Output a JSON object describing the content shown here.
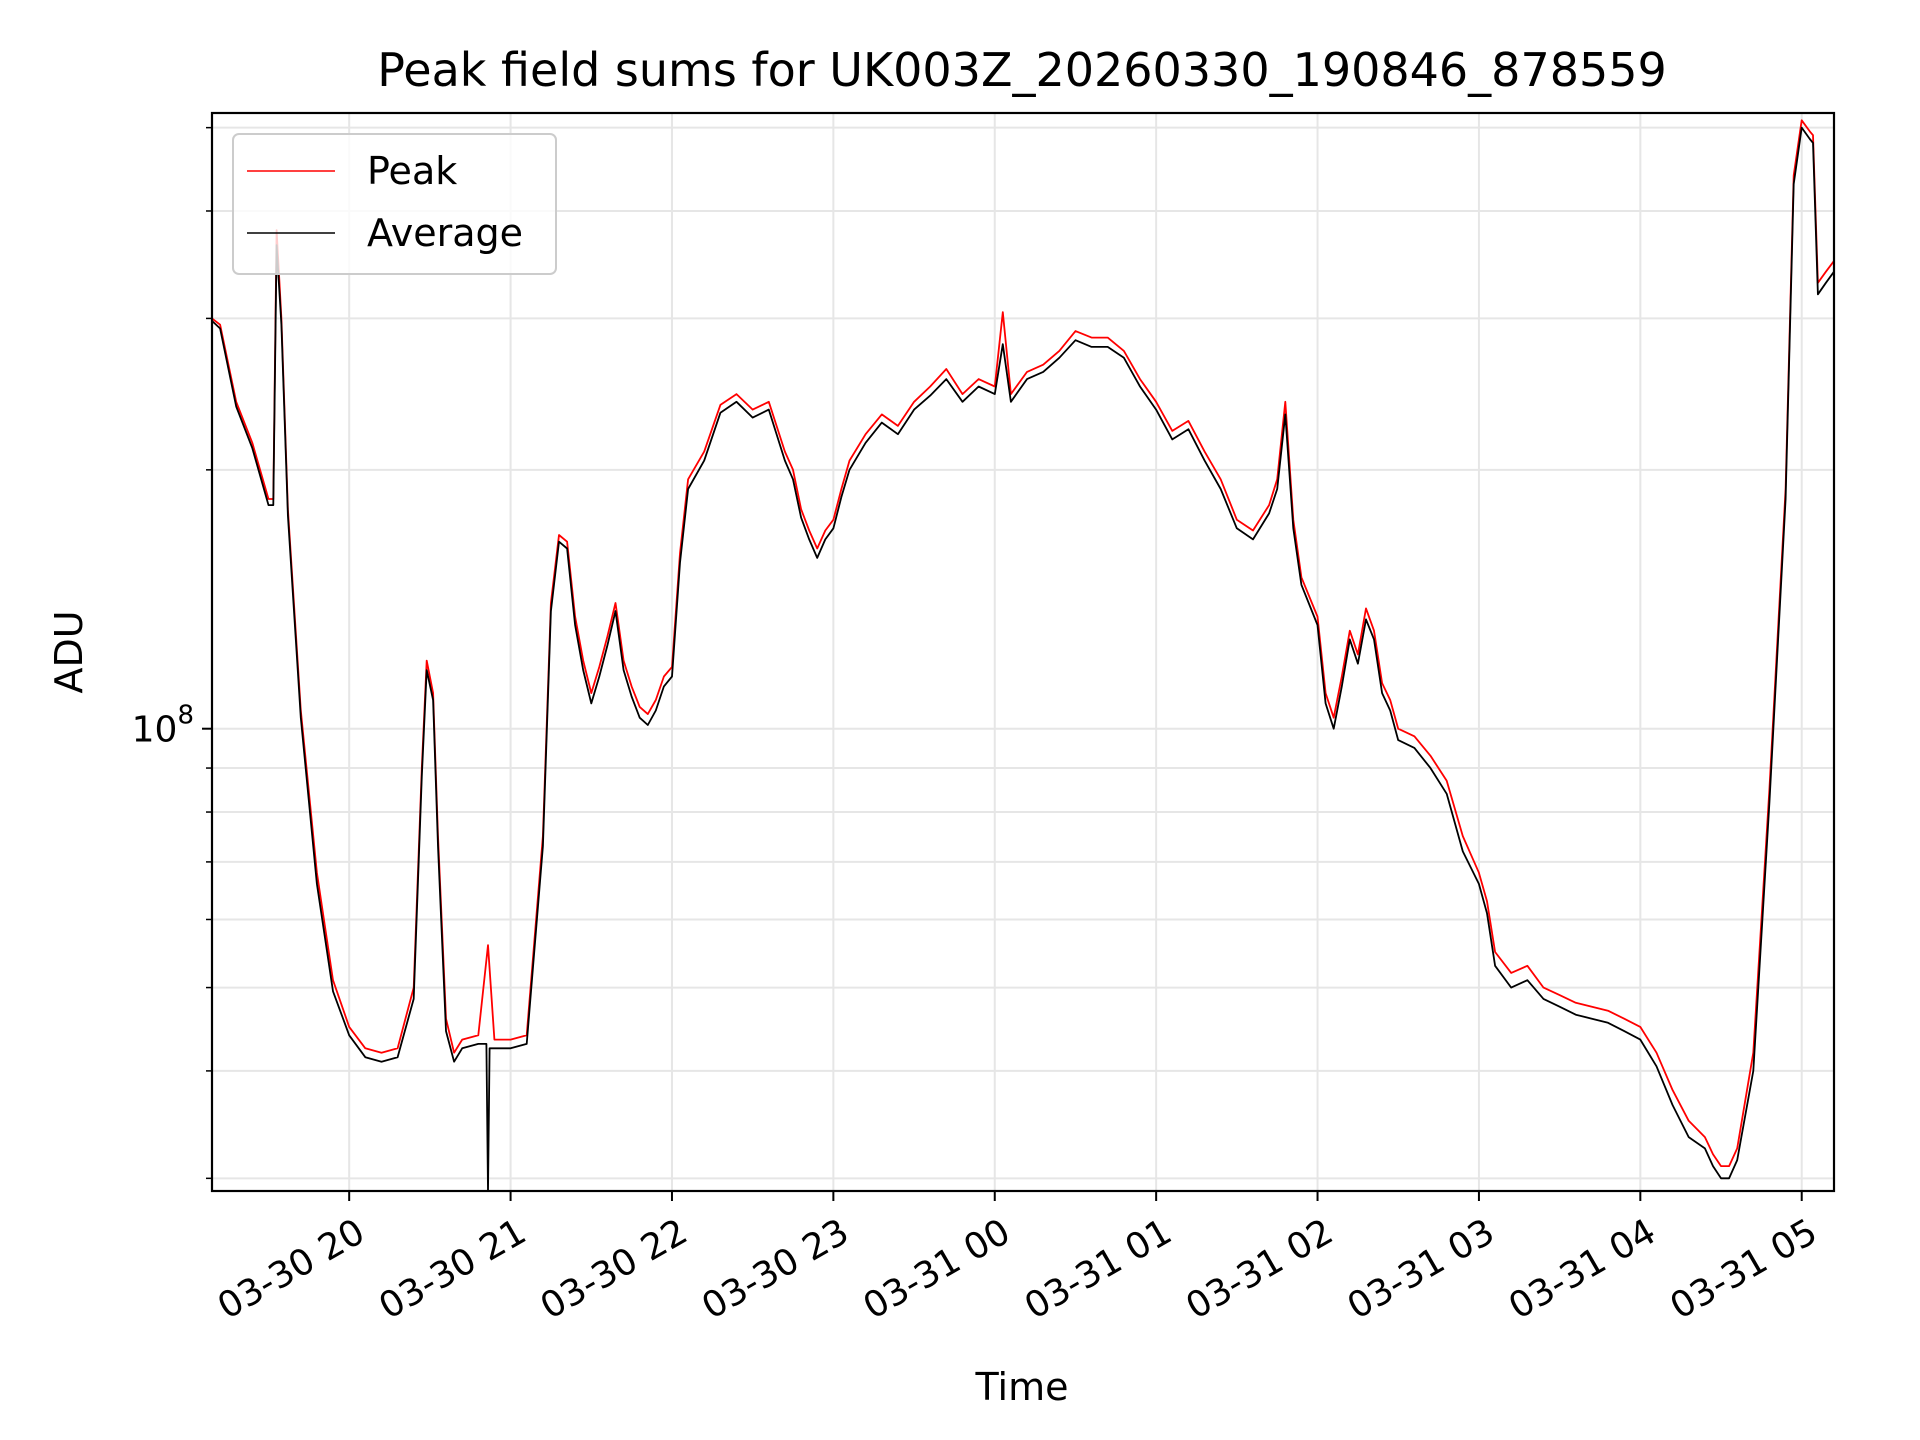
{
  "chart_data": {
    "type": "line",
    "title": "Peak field sums for UK003Z_20260330_190846_878559",
    "xlabel": "Time",
    "ylabel": "ADU",
    "yscale": "log",
    "ylim": [
      29000000,
      520000000
    ],
    "xlim_hours": [
      19.15,
      29.2
    ],
    "x_ticks": [
      {
        "label": "03-30 20",
        "hours": 20
      },
      {
        "label": "03-30 21",
        "hours": 21
      },
      {
        "label": "03-30 22",
        "hours": 22
      },
      {
        "label": "03-30 23",
        "hours": 23
      },
      {
        "label": "03-31 00",
        "hours": 24
      },
      {
        "label": "03-31 01",
        "hours": 25
      },
      {
        "label": "03-31 02",
        "hours": 26
      },
      {
        "label": "03-31 03",
        "hours": 27
      },
      {
        "label": "03-31 04",
        "hours": 28
      },
      {
        "label": "03-31 05",
        "hours": 29
      }
    ],
    "y_major_ticks": [
      {
        "value": 100000000,
        "base": "10",
        "exp": "8"
      }
    ],
    "y_minor_ticks": [
      30000000,
      40000000,
      50000000,
      60000000,
      70000000,
      80000000,
      90000000,
      200000000,
      300000000,
      400000000,
      500000000
    ],
    "grid": true,
    "legend_position": "top-left",
    "series": [
      {
        "name": "Peak",
        "color": "#ff0000",
        "x": [
          19.15,
          19.2,
          19.3,
          19.4,
          19.5,
          19.53,
          19.55,
          19.58,
          19.62,
          19.7,
          19.8,
          19.9,
          20.0,
          20.1,
          20.2,
          20.3,
          20.4,
          20.45,
          20.48,
          20.52,
          20.55,
          20.6,
          20.65,
          20.7,
          20.8,
          20.86,
          20.9,
          21.0,
          21.1,
          21.2,
          21.25,
          21.3,
          21.35,
          21.4,
          21.45,
          21.5,
          21.55,
          21.6,
          21.65,
          21.7,
          21.75,
          21.8,
          21.85,
          21.9,
          21.95,
          22.0,
          22.05,
          22.1,
          22.2,
          22.3,
          22.4,
          22.5,
          22.6,
          22.7,
          22.75,
          22.8,
          22.85,
          22.9,
          22.95,
          23.0,
          23.05,
          23.1,
          23.2,
          23.3,
          23.4,
          23.5,
          23.6,
          23.7,
          23.8,
          23.9,
          24.0,
          24.05,
          24.1,
          24.2,
          24.3,
          24.4,
          24.5,
          24.6,
          24.7,
          24.8,
          24.9,
          25.0,
          25.1,
          25.2,
          25.3,
          25.4,
          25.5,
          25.6,
          25.7,
          25.75,
          25.8,
          25.85,
          25.9,
          26.0,
          26.05,
          26.1,
          26.15,
          26.2,
          26.25,
          26.3,
          26.35,
          26.4,
          26.45,
          26.5,
          26.6,
          26.7,
          26.8,
          26.9,
          27.0,
          27.05,
          27.1,
          27.2,
          27.3,
          27.4,
          27.5,
          27.6,
          27.7,
          27.8,
          27.9,
          28.0,
          28.1,
          28.2,
          28.3,
          28.4,
          28.45,
          28.5,
          28.55,
          28.6,
          28.7,
          28.8,
          28.9,
          28.95,
          29.0,
          29.05,
          29.07,
          29.1,
          29.15,
          29.2
        ],
        "y": [
          300000000,
          295000000,
          240000000,
          215000000,
          185000000,
          185000000,
          380000000,
          300000000,
          180000000,
          105000000,
          68000000,
          51000000,
          45000000,
          42500000,
          42000000,
          42500000,
          50000000,
          90000000,
          120000000,
          110000000,
          75000000,
          46000000,
          42000000,
          43500000,
          44000000,
          56000000,
          43500000,
          43500000,
          44000000,
          75000000,
          140000000,
          168000000,
          165000000,
          135000000,
          120000000,
          110000000,
          118000000,
          128000000,
          140000000,
          120000000,
          112000000,
          106000000,
          104000000,
          108000000,
          115000000,
          118000000,
          160000000,
          195000000,
          210000000,
          238000000,
          245000000,
          235000000,
          240000000,
          210000000,
          200000000,
          180000000,
          170000000,
          162000000,
          170000000,
          175000000,
          190000000,
          205000000,
          220000000,
          232000000,
          225000000,
          240000000,
          250000000,
          262000000,
          245000000,
          255000000,
          250000000,
          305000000,
          245000000,
          260000000,
          265000000,
          275000000,
          290000000,
          285000000,
          285000000,
          275000000,
          255000000,
          240000000,
          222000000,
          228000000,
          210000000,
          195000000,
          175000000,
          170000000,
          182000000,
          195000000,
          240000000,
          175000000,
          150000000,
          135000000,
          110000000,
          103000000,
          115000000,
          130000000,
          122000000,
          138000000,
          130000000,
          113000000,
          108000000,
          100000000,
          98000000,
          93000000,
          87000000,
          75000000,
          68000000,
          63000000,
          55000000,
          52000000,
          53000000,
          50000000,
          49000000,
          48000000,
          47500000,
          47000000,
          46000000,
          45000000,
          42000000,
          38000000,
          35000000,
          33500000,
          32000000,
          31000000,
          31000000,
          32500000,
          42000000,
          85000000,
          190000000,
          440000000,
          510000000,
          495000000,
          490000000,
          330000000,
          340000000,
          350000000
        ]
      },
      {
        "name": "Average",
        "color": "#000000",
        "x": [
          19.15,
          19.2,
          19.3,
          19.4,
          19.5,
          19.53,
          19.55,
          19.58,
          19.62,
          19.7,
          19.8,
          19.9,
          20.0,
          20.1,
          20.2,
          20.3,
          20.4,
          20.45,
          20.48,
          20.52,
          20.55,
          20.6,
          20.65,
          20.7,
          20.8,
          20.85,
          20.86,
          20.87,
          20.9,
          21.0,
          21.1,
          21.2,
          21.25,
          21.3,
          21.35,
          21.4,
          21.45,
          21.5,
          21.55,
          21.6,
          21.65,
          21.7,
          21.75,
          21.8,
          21.85,
          21.9,
          21.95,
          22.0,
          22.05,
          22.1,
          22.2,
          22.3,
          22.4,
          22.5,
          22.6,
          22.7,
          22.75,
          22.8,
          22.85,
          22.9,
          22.95,
          23.0,
          23.05,
          23.1,
          23.2,
          23.3,
          23.4,
          23.5,
          23.6,
          23.7,
          23.8,
          23.9,
          24.0,
          24.05,
          24.1,
          24.2,
          24.3,
          24.4,
          24.5,
          24.6,
          24.7,
          24.8,
          24.9,
          25.0,
          25.1,
          25.2,
          25.3,
          25.4,
          25.5,
          25.6,
          25.7,
          25.75,
          25.8,
          25.85,
          25.9,
          26.0,
          26.05,
          26.1,
          26.15,
          26.2,
          26.25,
          26.3,
          26.35,
          26.4,
          26.45,
          26.5,
          26.6,
          26.7,
          26.8,
          26.9,
          27.0,
          27.05,
          27.1,
          27.2,
          27.3,
          27.4,
          27.5,
          27.6,
          27.7,
          27.8,
          27.9,
          28.0,
          28.1,
          28.2,
          28.3,
          28.4,
          28.45,
          28.5,
          28.55,
          28.6,
          28.7,
          28.8,
          28.9,
          28.95,
          29.0,
          29.05,
          29.07,
          29.1,
          29.15,
          29.2
        ],
        "y": [
          298000000,
          292000000,
          237000000,
          212000000,
          182000000,
          182000000,
          365000000,
          295000000,
          177000000,
          103000000,
          66000000,
          49500000,
          44000000,
          41500000,
          41000000,
          41500000,
          48500000,
          88000000,
          117000000,
          108000000,
          73000000,
          44500000,
          41000000,
          42500000,
          43000000,
          43000000,
          29000000,
          42500000,
          42500000,
          42500000,
          43000000,
          73000000,
          137000000,
          165000000,
          162000000,
          132000000,
          117000000,
          107000000,
          115000000,
          125000000,
          137000000,
          117000000,
          109000000,
          103000000,
          101000000,
          105000000,
          112000000,
          115000000,
          156000000,
          190000000,
          205000000,
          233000000,
          240000000,
          230000000,
          235000000,
          205000000,
          195000000,
          176000000,
          166000000,
          158000000,
          166000000,
          171000000,
          186000000,
          200000000,
          215000000,
          227000000,
          220000000,
          235000000,
          244000000,
          255000000,
          240000000,
          250000000,
          245000000,
          280000000,
          240000000,
          255000000,
          260000000,
          270000000,
          283000000,
          278000000,
          278000000,
          270000000,
          250000000,
          235000000,
          217000000,
          223000000,
          205000000,
          190000000,
          171000000,
          166000000,
          178000000,
          190000000,
          232000000,
          171000000,
          147000000,
          132000000,
          107000000,
          100000000,
          112000000,
          127000000,
          119000000,
          134000000,
          127000000,
          110000000,
          105000000,
          97000000,
          95000000,
          90000000,
          84000000,
          72000000,
          66000000,
          61000000,
          53000000,
          50000000,
          51000000,
          48500000,
          47500000,
          46500000,
          46000000,
          45500000,
          44500000,
          43500000,
          40500000,
          36500000,
          33500000,
          32500000,
          31000000,
          30000000,
          30000000,
          31500000,
          40000000,
          82000000,
          185000000,
          430000000,
          500000000,
          485000000,
          480000000,
          320000000,
          330000000,
          340000000
        ]
      }
    ]
  }
}
